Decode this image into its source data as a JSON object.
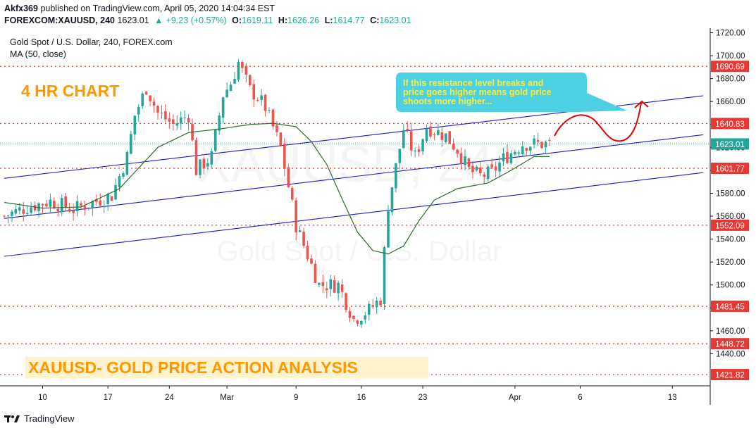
{
  "header": {
    "author": "Akfx369",
    "published_text": "published on TradingView.com, April 05, 2020 14:04:34 EST",
    "symbol": "FOREXCOM:XAUUSD, 240",
    "last": "1623.01",
    "change_arrow": "▲",
    "change": "+9.23 (+0.57%)",
    "open_label": "O:",
    "open": "1619.11",
    "high_label": "H:",
    "high": "1626.26",
    "low_label": "L:",
    "low": "1614.77",
    "close_label": "C:",
    "close": "1623.01"
  },
  "legend": {
    "title": "Gold Spot / U.S. Dollar, 240, FOREX.com",
    "ma": "MA (50, close)"
  },
  "watermark": {
    "symbol": "XAUUSD, 240",
    "name": "Gold Spot / U.S. Dollar"
  },
  "annotations": {
    "chart_label": "4 HR CHART",
    "bottom_title": "XAUUSD- GOLD PRICE ACTION ANALYSIS",
    "callout": [
      "If this resistance level breaks and",
      "price goes higher means gold price",
      "shoots more higher..."
    ]
  },
  "footer": {
    "brand": "TradingView"
  },
  "colors": {
    "up": "#26a69a",
    "down": "#ef5350",
    "ma": "#2e6b2e",
    "trend": "#1a1acc",
    "level": "#e53935",
    "callout_bg": "#4dd0e1",
    "callout_text": "#ffeb3b",
    "label_orange": "#ff9800",
    "bottom_title_bg": "#fff3cd",
    "current_price": "#26a69a"
  },
  "chart_data": {
    "type": "candlestick",
    "y_axis": {
      "ylim": [
        1412,
        1724
      ],
      "ticks": [
        "1720.00",
        "1700.00",
        "1680.00",
        "1660.00",
        "1640.00",
        "1620.00",
        "1600.00",
        "1580.00",
        "1560.00",
        "1540.00",
        "1520.00",
        "1500.00",
        "1480.00",
        "1460.00",
        "1440.00"
      ]
    },
    "x_axis": {
      "labels": [
        "10",
        "17",
        "24",
        "Mar",
        "9",
        "16",
        "23",
        "Apr",
        "6",
        "13"
      ]
    },
    "levels": [
      {
        "value": 1690.69,
        "label": "1690.69"
      },
      {
        "value": 1640.83,
        "label": "1640.83"
      },
      {
        "value": 1601.77,
        "label": "1601.77"
      },
      {
        "value": 1552.09,
        "label": "1552.09"
      },
      {
        "value": 1481.45,
        "label": "1481.45"
      },
      {
        "value": 1448.72,
        "label": "1448.72"
      },
      {
        "value": 1421.82,
        "label": "1421.82"
      }
    ],
    "current_price": {
      "value": 1623.01,
      "label": "1623.01"
    },
    "trendlines": [
      {
        "x1": 0,
        "y1": 1593,
        "x2": 182,
        "y2": 1665
      },
      {
        "x1": 0,
        "y1": 1558,
        "x2": 182,
        "y2": 1631
      },
      {
        "x1": 0,
        "y1": 1525,
        "x2": 182,
        "y2": 1598
      }
    ],
    "path_index": [
      0,
      6,
      12,
      18,
      23,
      28,
      32,
      34,
      37,
      40,
      44,
      48,
      50,
      54,
      57,
      59,
      61,
      64,
      66,
      68,
      72,
      76,
      82,
      87,
      91,
      95,
      98,
      100,
      104,
      107,
      110,
      115,
      118,
      121,
      124,
      127,
      130,
      133,
      135,
      137,
      138,
      140,
      142
    ],
    "path_close": [
      1560,
      1568,
      1573,
      1566,
      1572,
      1578,
      1612,
      1648,
      1672,
      1650,
      1640,
      1648,
      1600,
      1612,
      1666,
      1676,
      1694,
      1670,
      1664,
      1655,
      1620,
      1552,
      1500,
      1500,
      1470,
      1478,
      1488,
      1570,
      1636,
      1612,
      1638,
      1630,
      1618,
      1600,
      1595,
      1598,
      1610,
      1618,
      1623,
      1623,
      1623,
      1623,
      1623
    ],
    "ma_index": [
      0,
      10,
      20,
      30,
      40,
      48,
      56,
      64,
      70,
      76,
      80,
      84,
      88,
      92,
      96,
      100,
      104,
      108,
      112,
      118,
      126,
      132,
      138
    ],
    "ma_values": [
      1572,
      1567,
      1568,
      1584,
      1620,
      1633,
      1636,
      1640,
      1641,
      1638,
      1625,
      1605,
      1575,
      1546,
      1530,
      1527,
      1534,
      1556,
      1574,
      1584,
      1589,
      1600,
      1612
    ],
    "projection_note": "hypothetical path above resistance"
  }
}
